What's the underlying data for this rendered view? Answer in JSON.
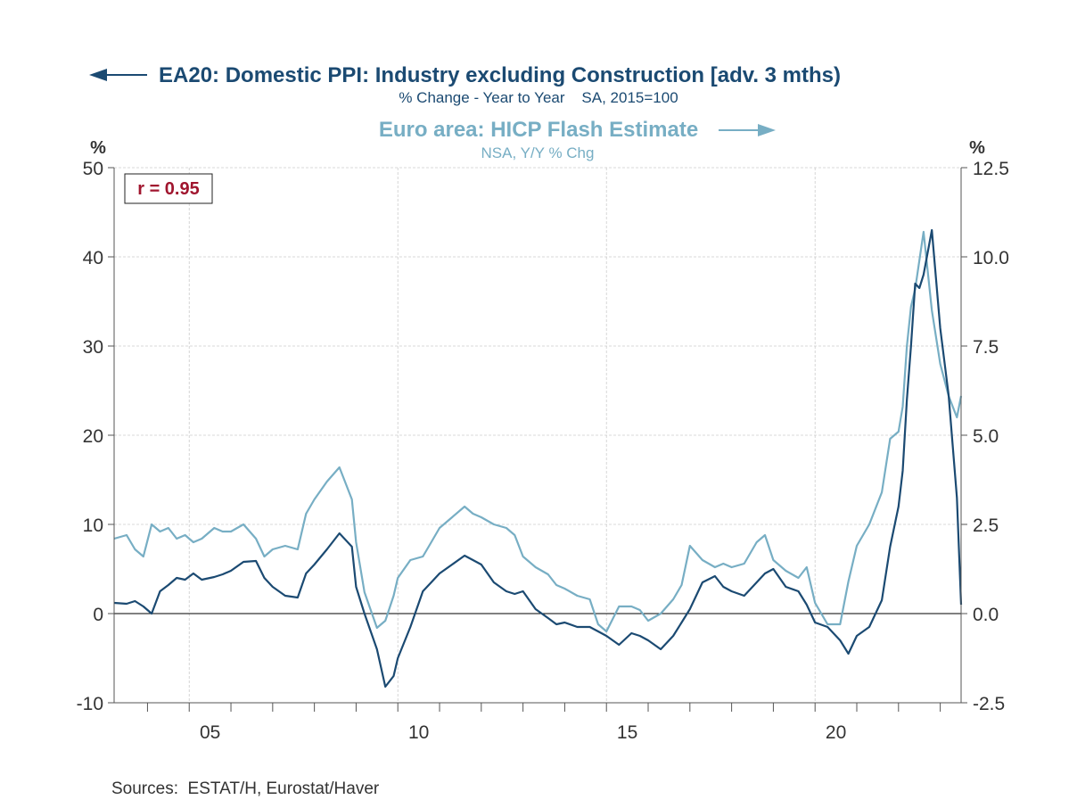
{
  "chart_data": {
    "type": "line",
    "title": "EA20: Domestic PPI: Industry excluding Construction [adv. 3 mths)",
    "subtitle": "% Change - Year to Year    SA, 2015=100",
    "title2": "Euro area: HICP Flash Estimate",
    "subtitle2": "NSA, Y/Y % Chg",
    "left_axis_unit": "%",
    "right_axis_unit": "%",
    "annotation": "r = 0.95",
    "source": "Sources:  ESTAT/H, Eurostat/Haver",
    "x_range": [
      2003.2,
      2023.5
    ],
    "x_ticks": [
      {
        "value": 2005.5,
        "label": "05"
      },
      {
        "value": 2010.5,
        "label": "10"
      },
      {
        "value": 2015.5,
        "label": "15"
      },
      {
        "value": 2020.5,
        "label": "20"
      }
    ],
    "year_ticks": [
      2004,
      2005,
      2006,
      2007,
      2008,
      2009,
      2010,
      2011,
      2012,
      2013,
      2014,
      2015,
      2016,
      2017,
      2018,
      2019,
      2020,
      2021,
      2022,
      2023
    ],
    "left_axis": {
      "range": [
        -10,
        50
      ],
      "ticks": [
        -10,
        0,
        10,
        20,
        30,
        40,
        50
      ],
      "tick_labels": [
        "-10",
        "0",
        "10",
        "20",
        "30",
        "40",
        "50"
      ]
    },
    "right_axis": {
      "range": [
        -2.5,
        12.5
      ],
      "ticks": [
        -2.5,
        0,
        2.5,
        5,
        7.5,
        10,
        12.5
      ],
      "tick_labels": [
        "-2.5",
        "0.0",
        "2.5",
        "5.0",
        "7.5",
        "10.0",
        "12.5"
      ]
    },
    "grid": true,
    "colors": {
      "ppi": "#1b4a72",
      "hicp": "#77aec4",
      "annotation": "#a0152e",
      "zero_line": "#000000"
    },
    "series": [
      {
        "name": "EA20: Domestic PPI: Industry excluding Construction [adv. 3 mths)",
        "axis": "left",
        "x": [
          2003.2,
          2003.5,
          2003.7,
          2003.9,
          2004.1,
          2004.3,
          2004.5,
          2004.7,
          2004.9,
          2005.1,
          2005.3,
          2005.6,
          2005.8,
          2006.0,
          2006.3,
          2006.6,
          2006.8,
          2007.0,
          2007.3,
          2007.6,
          2007.8,
          2008.0,
          2008.3,
          2008.6,
          2008.9,
          2009.0,
          2009.2,
          2009.5,
          2009.7,
          2009.9,
          2010.0,
          2010.3,
          2010.6,
          2010.8,
          2011.0,
          2011.3,
          2011.6,
          2011.8,
          2012.0,
          2012.3,
          2012.6,
          2012.8,
          2013.0,
          2013.3,
          2013.6,
          2013.8,
          2014.0,
          2014.3,
          2014.6,
          2014.8,
          2015.0,
          2015.3,
          2015.6,
          2015.8,
          2016.0,
          2016.3,
          2016.6,
          2016.8,
          2017.0,
          2017.3,
          2017.6,
          2017.8,
          2018.0,
          2018.3,
          2018.6,
          2018.8,
          2019.0,
          2019.3,
          2019.6,
          2019.8,
          2020.0,
          2020.3,
          2020.6,
          2020.8,
          2021.0,
          2021.3,
          2021.6,
          2021.8,
          2022.0,
          2022.1,
          2022.2,
          2022.3,
          2022.4,
          2022.5,
          2022.6,
          2022.8,
          2023.0,
          2023.2,
          2023.4,
          2023.5
        ],
        "values": [
          1.2,
          1.1,
          1.4,
          0.8,
          0.0,
          2.5,
          3.2,
          4.0,
          3.8,
          4.5,
          3.8,
          4.1,
          4.4,
          4.8,
          5.8,
          5.9,
          4.0,
          3.0,
          2.0,
          1.8,
          4.5,
          5.5,
          7.2,
          9.0,
          7.5,
          3.0,
          0.0,
          -4.0,
          -8.2,
          -7.0,
          -5.0,
          -1.5,
          2.5,
          3.5,
          4.5,
          5.5,
          6.5,
          6.0,
          5.5,
          3.5,
          2.5,
          2.2,
          2.5,
          0.5,
          -0.5,
          -1.2,
          -1.0,
          -1.5,
          -1.5,
          -2.0,
          -2.5,
          -3.5,
          -2.2,
          -2.5,
          -3.0,
          -4.0,
          -2.5,
          -1.0,
          0.5,
          3.5,
          4.2,
          3.0,
          2.5,
          2.0,
          3.5,
          4.5,
          5.0,
          3.0,
          2.5,
          1.0,
          -1.0,
          -1.5,
          -3.0,
          -4.5,
          -2.5,
          -1.5,
          1.5,
          7.5,
          12.0,
          16.0,
          24.0,
          30.0,
          37.0,
          36.5,
          38.0,
          43.0,
          32.0,
          24.5,
          13.0,
          1.0
        ]
      },
      {
        "name": "Euro area: HICP Flash Estimate",
        "axis": "right",
        "x": [
          2003.2,
          2003.5,
          2003.7,
          2003.9,
          2004.1,
          2004.3,
          2004.5,
          2004.7,
          2004.9,
          2005.1,
          2005.3,
          2005.6,
          2005.8,
          2006.0,
          2006.3,
          2006.6,
          2006.8,
          2007.0,
          2007.3,
          2007.6,
          2007.8,
          2008.0,
          2008.3,
          2008.6,
          2008.9,
          2009.0,
          2009.2,
          2009.5,
          2009.7,
          2009.9,
          2010.0,
          2010.3,
          2010.6,
          2010.8,
          2011.0,
          2011.3,
          2011.6,
          2011.8,
          2012.0,
          2012.3,
          2012.6,
          2012.8,
          2013.0,
          2013.3,
          2013.6,
          2013.8,
          2014.0,
          2014.3,
          2014.6,
          2014.8,
          2015.0,
          2015.3,
          2015.6,
          2015.8,
          2016.0,
          2016.3,
          2016.6,
          2016.8,
          2017.0,
          2017.3,
          2017.6,
          2017.8,
          2018.0,
          2018.3,
          2018.6,
          2018.8,
          2019.0,
          2019.3,
          2019.6,
          2019.8,
          2020.0,
          2020.3,
          2020.6,
          2020.8,
          2021.0,
          2021.3,
          2021.6,
          2021.8,
          2022.0,
          2022.1,
          2022.2,
          2022.3,
          2022.4,
          2022.5,
          2022.6,
          2022.8,
          2023.0,
          2023.2,
          2023.4,
          2023.5
        ],
        "values": [
          2.1,
          2.2,
          1.8,
          1.6,
          2.5,
          2.3,
          2.4,
          2.1,
          2.2,
          2.0,
          2.1,
          2.4,
          2.3,
          2.3,
          2.5,
          2.1,
          1.6,
          1.8,
          1.9,
          1.8,
          2.8,
          3.2,
          3.7,
          4.1,
          3.2,
          2.0,
          0.6,
          -0.4,
          -0.2,
          0.5,
          1.0,
          1.5,
          1.6,
          2.0,
          2.4,
          2.7,
          3.0,
          2.8,
          2.7,
          2.5,
          2.4,
          2.2,
          1.6,
          1.3,
          1.1,
          0.8,
          0.7,
          0.5,
          0.4,
          -0.3,
          -0.5,
          0.2,
          0.2,
          0.1,
          -0.2,
          0.0,
          0.4,
          0.8,
          1.9,
          1.5,
          1.3,
          1.4,
          1.3,
          1.4,
          2.0,
          2.2,
          1.5,
          1.2,
          1.0,
          1.3,
          0.3,
          -0.3,
          -0.3,
          0.9,
          1.9,
          2.5,
          3.4,
          4.9,
          5.1,
          5.8,
          7.5,
          8.6,
          9.1,
          9.9,
          10.7,
          8.5,
          7.0,
          6.1,
          5.5,
          6.1
        ]
      }
    ]
  }
}
